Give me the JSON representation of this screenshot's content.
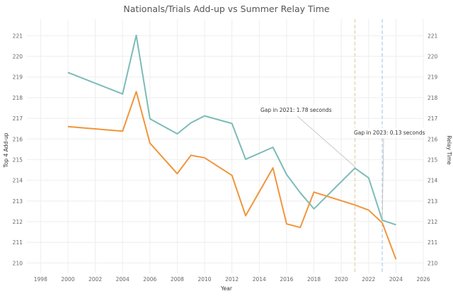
{
  "chart_data": {
    "type": "line",
    "title": "Nationals/Trials Add-up vs Summer Relay Time",
    "xlabel": "Year",
    "ylabel_left": "Top 4 Add-up",
    "ylabel_right": "Relay Time",
    "xlim": [
      1997,
      2026
    ],
    "ylim": [
      209.5,
      221.8
    ],
    "x_ticks": [
      1998,
      2000,
      2002,
      2004,
      2006,
      2008,
      2010,
      2012,
      2014,
      2016,
      2018,
      2020,
      2022,
      2024,
      2026
    ],
    "y_ticks": [
      210,
      211,
      212,
      213,
      214,
      215,
      216,
      217,
      218,
      219,
      220,
      221
    ],
    "grid": true,
    "series": [
      {
        "color": "#7bbcb8",
        "points": [
          [
            2000,
            219.22
          ],
          [
            2004,
            218.18
          ],
          [
            2005,
            221.02
          ],
          [
            2006,
            216.98
          ],
          [
            2008,
            216.25
          ],
          [
            2009,
            216.78
          ],
          [
            2010,
            217.12
          ],
          [
            2012,
            216.75
          ],
          [
            2013,
            215.02
          ],
          [
            2015,
            215.6
          ],
          [
            2016,
            214.28
          ],
          [
            2017,
            213.4
          ],
          [
            2018,
            212.62
          ],
          [
            2021,
            214.59
          ],
          [
            2022,
            214.12
          ],
          [
            2023,
            212.07
          ],
          [
            2024,
            211.85
          ]
        ]
      },
      {
        "color": "#f0953a",
        "points": [
          [
            2000,
            216.6
          ],
          [
            2004,
            216.38
          ],
          [
            2005,
            218.29
          ],
          [
            2006,
            215.8
          ],
          [
            2008,
            214.32
          ],
          [
            2009,
            215.21
          ],
          [
            2010,
            215.09
          ],
          [
            2012,
            214.24
          ],
          [
            2013,
            212.29
          ],
          [
            2015,
            214.6
          ],
          [
            2016,
            211.89
          ],
          [
            2017,
            211.72
          ],
          [
            2018,
            213.43
          ],
          [
            2021,
            212.81
          ],
          [
            2022,
            212.56
          ],
          [
            2023,
            211.94
          ],
          [
            2024,
            210.18
          ]
        ]
      }
    ],
    "reference_lines": [
      {
        "x": 2021,
        "color": "#e3cfa6"
      },
      {
        "x": 2023,
        "color": "#a9cbe8"
      }
    ],
    "annotations": [
      {
        "text": "Gap in 2021: 1.78 seconds",
        "target": [
          2021,
          214.59
        ],
        "placement": "upper-middle"
      },
      {
        "text": "Gap in 2023: 0.13 seconds",
        "target": [
          2023,
          212.07
        ],
        "placement": "upper-right"
      }
    ]
  }
}
